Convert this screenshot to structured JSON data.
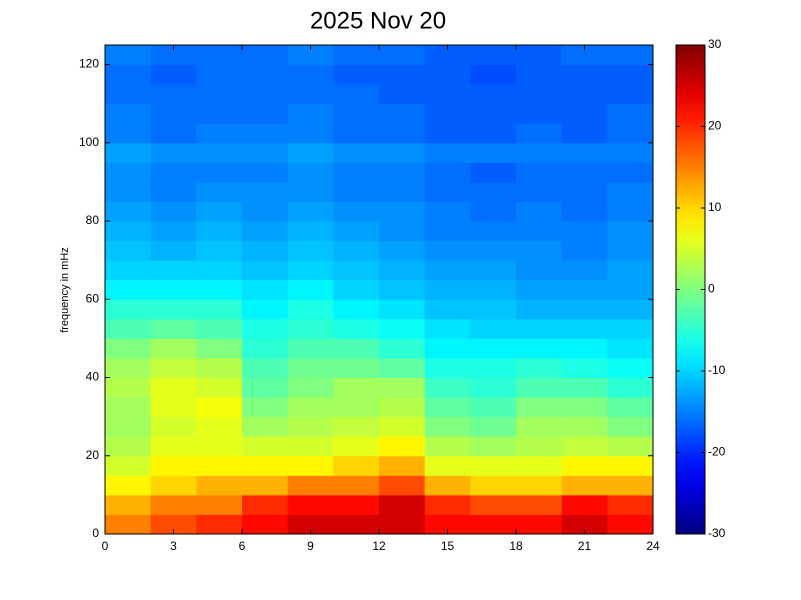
{
  "chart_data": {
    "type": "heatmap",
    "title": "2025 Nov 20",
    "ylabel": "frequency in mHz",
    "colormap": "jet",
    "xlim": [
      0,
      24
    ],
    "xticks": [
      0,
      3,
      6,
      9,
      12,
      15,
      18,
      21,
      24
    ],
    "ylim": [
      0,
      125
    ],
    "yticks": [
      0,
      20,
      40,
      60,
      80,
      100,
      120
    ],
    "x": [
      1,
      3,
      5,
      7,
      9,
      11,
      13,
      15,
      17,
      19,
      21,
      23
    ],
    "y": [
      2.5,
      7.5,
      12.5,
      17.5,
      22.5,
      27.5,
      32.5,
      37.5,
      42.5,
      47.5,
      52.5,
      57.5,
      62.5,
      67.5,
      72.5,
      77.5,
      82.5,
      87.5,
      92.5,
      97.5,
      102.5,
      107.5,
      112.5,
      117.5,
      122.5
    ],
    "z": [
      [
        15,
        18,
        20,
        22,
        25,
        25,
        25,
        22,
        22,
        22,
        25,
        22
      ],
      [
        12,
        15,
        15,
        20,
        22,
        22,
        25,
        20,
        18,
        18,
        22,
        20
      ],
      [
        8,
        10,
        12,
        12,
        15,
        15,
        18,
        12,
        10,
        10,
        12,
        12
      ],
      [
        5,
        8,
        8,
        8,
        8,
        10,
        12,
        6,
        6,
        6,
        8,
        8
      ],
      [
        3,
        6,
        6,
        5,
        5,
        6,
        8,
        3,
        2,
        3,
        4,
        3
      ],
      [
        2,
        5,
        6,
        2,
        3,
        4,
        5,
        0,
        -1,
        2,
        2,
        0
      ],
      [
        2,
        6,
        7,
        0,
        2,
        2,
        3,
        -2,
        -3,
        0,
        0,
        -2
      ],
      [
        3,
        6,
        5,
        -2,
        0,
        2,
        2,
        -4,
        -5,
        -3,
        -3,
        -5
      ],
      [
        2,
        4,
        3,
        -3,
        -1,
        -1,
        -2,
        -6,
        -6,
        -5,
        -6,
        -7
      ],
      [
        0,
        2,
        0,
        -5,
        -3,
        -3,
        -5,
        -8,
        -8,
        -8,
        -8,
        -9
      ],
      [
        -3,
        -2,
        -3,
        -6,
        -5,
        -6,
        -7,
        -9,
        -10,
        -10,
        -10,
        -10
      ],
      [
        -5,
        -5,
        -5,
        -8,
        -6,
        -8,
        -9,
        -11,
        -11,
        -12,
        -12,
        -12
      ],
      [
        -8,
        -8,
        -8,
        -9,
        -8,
        -10,
        -11,
        -12,
        -12,
        -13,
        -13,
        -13
      ],
      [
        -10,
        -10,
        -10,
        -11,
        -10,
        -11,
        -12,
        -13,
        -13,
        -14,
        -14,
        -13
      ],
      [
        -11,
        -12,
        -11,
        -12,
        -11,
        -12,
        -13,
        -14,
        -14,
        -14,
        -15,
        -14
      ],
      [
        -12,
        -13,
        -12,
        -13,
        -12,
        -13,
        -14,
        -15,
        -15,
        -15,
        -15,
        -14
      ],
      [
        -13,
        -14,
        -13,
        -14,
        -13,
        -14,
        -14,
        -15,
        -16,
        -15,
        -16,
        -15
      ],
      [
        -14,
        -15,
        -14,
        -14,
        -14,
        -15,
        -15,
        -16,
        -16,
        -16,
        -16,
        -15
      ],
      [
        -14,
        -15,
        -15,
        -15,
        -14,
        -15,
        -15,
        -16,
        -17,
        -16,
        -16,
        -16
      ],
      [
        -13,
        -14,
        -14,
        -14,
        -13,
        -14,
        -14,
        -15,
        -15,
        -15,
        -15,
        -15
      ],
      [
        -15,
        -16,
        -15,
        -15,
        -15,
        -16,
        -16,
        -17,
        -17,
        -16,
        -17,
        -16
      ],
      [
        -15,
        -16,
        -16,
        -16,
        -15,
        -16,
        -16,
        -17,
        -17,
        -17,
        -17,
        -16
      ],
      [
        -16,
        -16,
        -16,
        -16,
        -16,
        -16,
        -17,
        -17,
        -17,
        -17,
        -17,
        -17
      ],
      [
        -16,
        -17,
        -16,
        -16,
        -16,
        -17,
        -17,
        -17,
        -18,
        -17,
        -17,
        -17
      ],
      [
        -15,
        -16,
        -16,
        -16,
        -15,
        -16,
        -16,
        -17,
        -17,
        -17,
        -16,
        -16
      ]
    ],
    "clim": [
      -30,
      30
    ],
    "cticks": [
      -30,
      -20,
      -10,
      0,
      10,
      20,
      30
    ]
  }
}
